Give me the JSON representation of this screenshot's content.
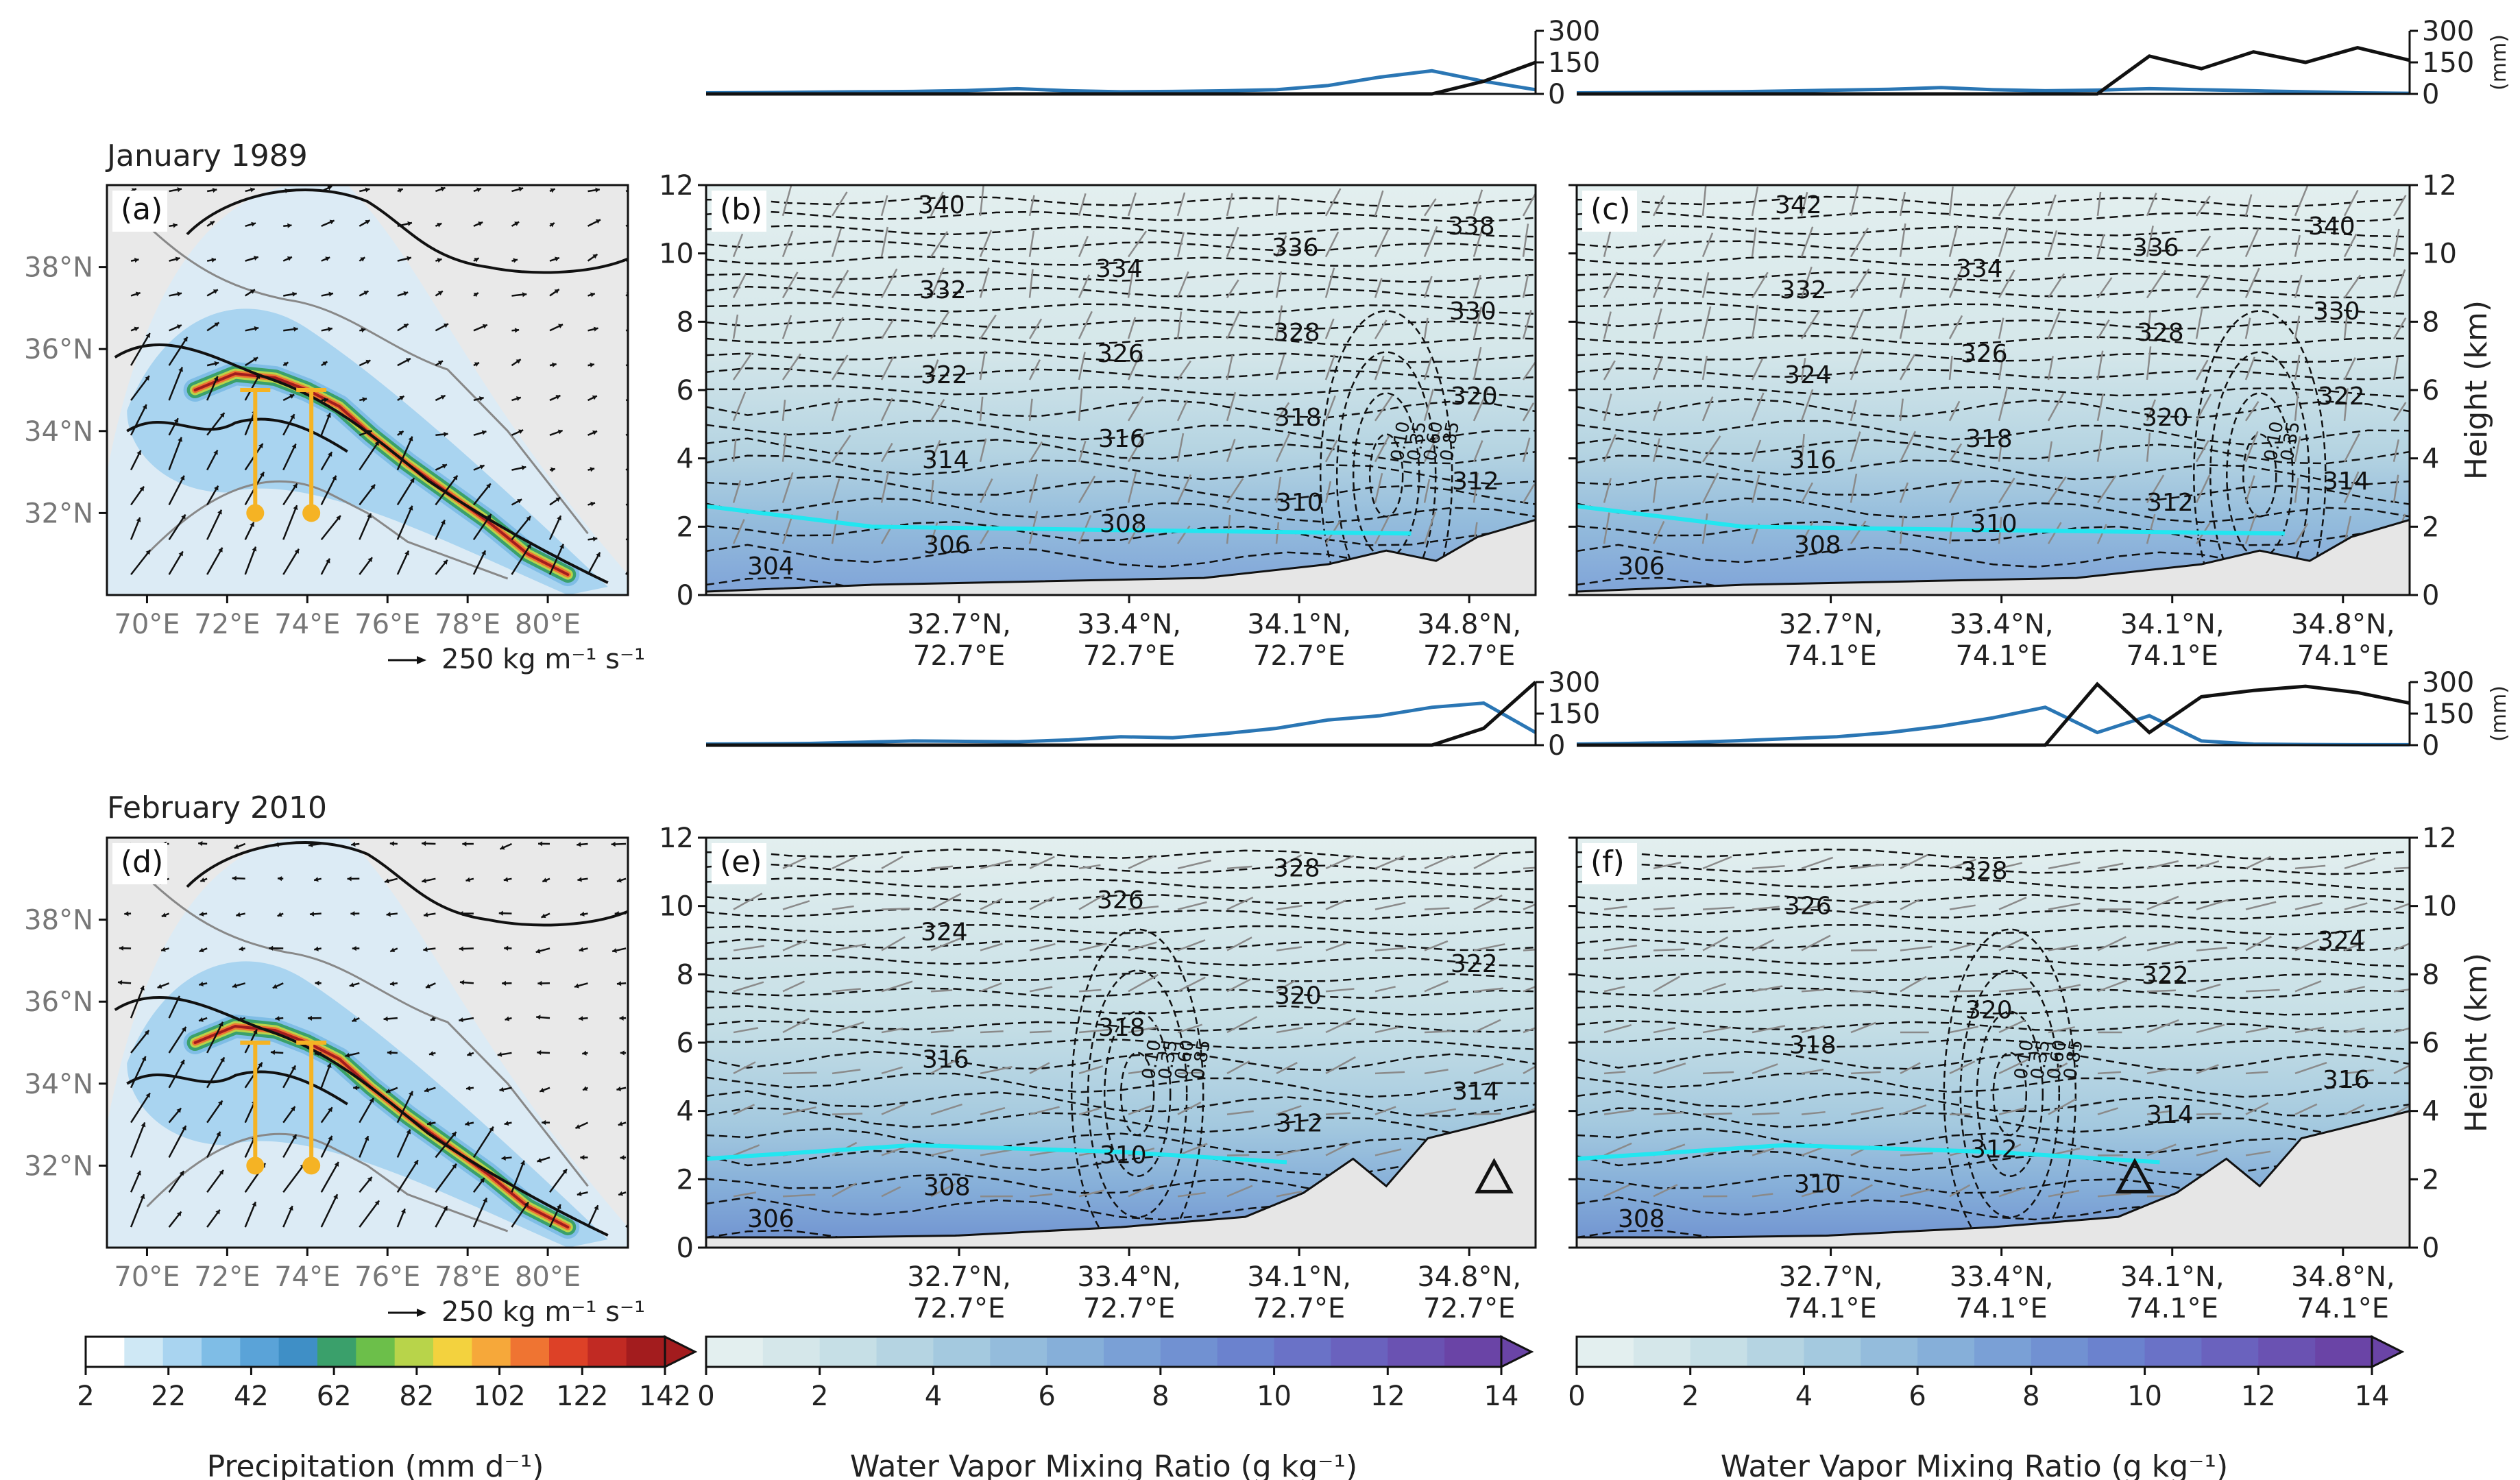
{
  "row_titles": [
    "January 1989",
    "February 2010"
  ],
  "panel_letters": [
    "(a)",
    "(b)",
    "(c)",
    "(d)",
    "(e)",
    "(f)"
  ],
  "map_x_ticks": [
    "70°E",
    "72°E",
    "74°E",
    "76°E",
    "78°E",
    "80°E"
  ],
  "map_y_ticks": [
    "38°N",
    "36°N",
    "34°N",
    "32°N"
  ],
  "vector_key": "250 kg m⁻¹ s⁻¹",
  "cross_y_ticks": [
    "0",
    "2",
    "4",
    "6",
    "8",
    "10",
    "12"
  ],
  "cross_ylabel": "Height (km)",
  "cross_x_ticks_b": [
    "32.7°N,\n72.7°E",
    "33.4°N,\n72.7°E",
    "34.1°N,\n72.7°E",
    "34.8°N,\n72.7°E"
  ],
  "cross_x_ticks_c": [
    "32.7°N,\n74.1°E",
    "33.4°N,\n74.1°E",
    "34.1°N,\n74.1°E",
    "34.8°N,\n74.1°E"
  ],
  "precip_strip_ticks": [
    "300",
    "150",
    "0"
  ],
  "precip_strip_unit": "(mm)",
  "colorbars": [
    {
      "label": "Precipitation (mm d⁻¹)",
      "ticks": [
        "2",
        "22",
        "42",
        "62",
        "82",
        "102",
        "122",
        "142"
      ]
    },
    {
      "label": "Water Vapor Mixing Ratio (g kg⁻¹)",
      "ticks": [
        "0",
        "2",
        "4",
        "6",
        "8",
        "10",
        "12",
        "14"
      ]
    },
    {
      "label": "Water Vapor Mixing Ratio (g kg⁻¹)",
      "ticks": [
        "0",
        "2",
        "4",
        "6",
        "8",
        "10",
        "12",
        "14"
      ]
    }
  ],
  "colors": {
    "precip_cmap": [
      "#ffffff",
      "#cfe8f5",
      "#a9d4f0",
      "#7fbde6",
      "#5aa3d8",
      "#3f8fc6",
      "#3aa06b",
      "#6cbf4a",
      "#b8d44a",
      "#f3d23e",
      "#f6a83a",
      "#ef7432",
      "#dd4127",
      "#c12a23",
      "#a31c1e"
    ],
    "qv_cmap": [
      "#e3efef",
      "#d5e7ea",
      "#c6dfe6",
      "#b5d4e2",
      "#a4c9df",
      "#94bcdc",
      "#86afd9",
      "#7aa0d6",
      "#7191d2",
      "#6b82ce",
      "#6a72c7",
      "#6a62be",
      "#6a52b2",
      "#6a44a6"
    ],
    "cyan_line": "#22e6f0",
    "blue_precip": "#2a76b4",
    "black_precip": "#111111",
    "terrain": "#e6e6e6",
    "orange_transect": "#f5b324"
  },
  "chart_data": [
    {
      "type": "heatmap",
      "panel": "(a)",
      "title": "January 1989",
      "xlim": [
        69,
        82
      ],
      "ylim": [
        30,
        40
      ],
      "x_ticks": [
        70,
        72,
        74,
        76,
        78,
        80
      ],
      "y_ticks": [
        32,
        34,
        36,
        38
      ],
      "transects": [
        {
          "lon": 72.7,
          "lat": [
            32.0,
            35.0
          ]
        },
        {
          "lon": 74.1,
          "lat": [
            32.0,
            35.0
          ]
        }
      ]
    },
    {
      "type": "heatmap",
      "panel": "(b)",
      "ylim": [
        0,
        12
      ],
      "ylabel": "Height (km)",
      "theta_labels": [
        304,
        306,
        308,
        310,
        312,
        314,
        316,
        318,
        320,
        322,
        326,
        328,
        330,
        332,
        334,
        336,
        338,
        340
      ],
      "qv_labels": [
        0.1,
        0.35,
        0.6,
        0.85
      ],
      "precip_strip": {
        "ylim": [
          0,
          300
        ],
        "blue": [
          5,
          6,
          8,
          10,
          12,
          16,
          25,
          15,
          10,
          12,
          15,
          20,
          40,
          80,
          110,
          60,
          20
        ],
        "black": [
          0,
          0,
          0,
          0,
          0,
          0,
          0,
          0,
          0,
          0,
          0,
          0,
          0,
          0,
          0,
          60,
          150
        ]
      }
    },
    {
      "type": "heatmap",
      "panel": "(c)",
      "ylim": [
        0,
        12
      ],
      "ylabel": "Height (km)",
      "theta_labels": [
        306,
        308,
        310,
        312,
        314,
        316,
        318,
        320,
        322,
        324,
        326,
        328,
        330,
        332,
        334,
        336,
        340,
        342
      ],
      "qv_labels": [
        0.1,
        0.35
      ],
      "precip_strip": {
        "ylim": [
          0,
          300
        ],
        "blue": [
          5,
          6,
          8,
          10,
          14,
          18,
          22,
          30,
          20,
          15,
          18,
          25,
          20,
          15,
          10,
          5,
          3
        ],
        "black": [
          0,
          0,
          0,
          0,
          0,
          0,
          0,
          0,
          0,
          0,
          0,
          180,
          120,
          200,
          150,
          220,
          160
        ]
      }
    },
    {
      "type": "heatmap",
      "panel": "(d)",
      "title": "February 2010",
      "xlim": [
        69,
        82
      ],
      "ylim": [
        30,
        40
      ],
      "x_ticks": [
        70,
        72,
        74,
        76,
        78,
        80
      ],
      "y_ticks": [
        32,
        34,
        36,
        38
      ],
      "transects": [
        {
          "lon": 72.7,
          "lat": [
            32.0,
            35.0
          ]
        },
        {
          "lon": 74.1,
          "lat": [
            32.0,
            35.0
          ]
        }
      ]
    },
    {
      "type": "heatmap",
      "panel": "(e)",
      "ylim": [
        0,
        12
      ],
      "ylabel": "Height (km)",
      "theta_labels": [
        306,
        308,
        310,
        312,
        314,
        316,
        318,
        320,
        322,
        324,
        326,
        328
      ],
      "qv_labels": [
        0.1,
        0.35,
        0.6,
        0.85
      ],
      "precip_strip": {
        "ylim": [
          0,
          300
        ],
        "blue": [
          5,
          6,
          8,
          14,
          20,
          18,
          16,
          25,
          40,
          35,
          55,
          80,
          120,
          140,
          180,
          200,
          60
        ],
        "black": [
          0,
          0,
          0,
          0,
          0,
          0,
          0,
          0,
          0,
          0,
          0,
          0,
          0,
          0,
          0,
          80,
          300
        ]
      }
    },
    {
      "type": "heatmap",
      "panel": "(f)",
      "ylim": [
        0,
        12
      ],
      "ylabel": "Height (km)",
      "theta_labels": [
        308,
        310,
        312,
        314,
        316,
        318,
        320,
        322,
        324,
        326,
        328
      ],
      "qv_labels": [
        0.1,
        0.35,
        0.6,
        0.85
      ],
      "precip_strip": {
        "ylim": [
          0,
          300
        ],
        "blue": [
          5,
          8,
          12,
          20,
          30,
          40,
          60,
          90,
          130,
          180,
          60,
          140,
          20,
          5,
          3,
          2,
          2
        ],
        "black": [
          0,
          0,
          0,
          0,
          0,
          0,
          0,
          0,
          0,
          0,
          290,
          60,
          230,
          260,
          280,
          250,
          200
        ]
      }
    }
  ]
}
